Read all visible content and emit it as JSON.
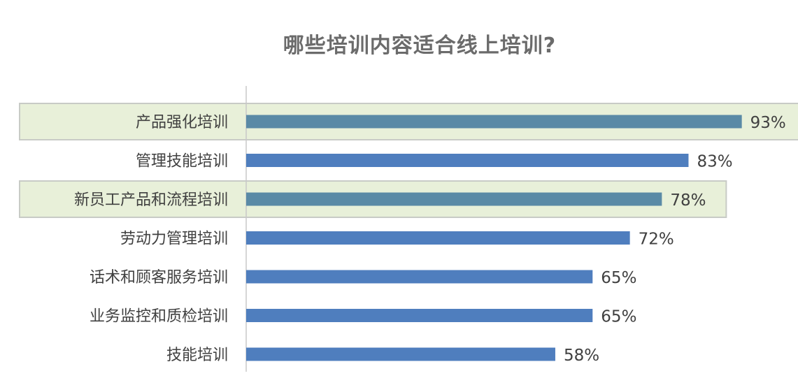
{
  "colors": {
    "bar": "#4f7ebe",
    "bar_highlight": "#5a8aa6",
    "highlight_fill": "#e8f0d9",
    "highlight_border": "#c8cbc6",
    "axis": "#c8c8c8",
    "text": "#404040",
    "title": "#6b6b6b"
  },
  "chart_data": {
    "type": "bar",
    "orientation": "horizontal",
    "title": "哪些培训内容适合线上培训?",
    "categories": [
      "产品强化培训",
      "管理技能培训",
      "新员工产品和流程培训",
      "劳动力管理培训",
      "话术和顾客服务培训",
      "业务监控和质检培训",
      "技能培训"
    ],
    "values": [
      93,
      83,
      78,
      72,
      65,
      65,
      58
    ],
    "value_labels": [
      "93%",
      "83%",
      "78%",
      "72%",
      "65%",
      "65%",
      "58%"
    ],
    "highlighted": [
      true,
      false,
      true,
      false,
      false,
      false,
      false
    ],
    "xlim": [
      0,
      100
    ],
    "grid": false,
    "legend": "none"
  }
}
